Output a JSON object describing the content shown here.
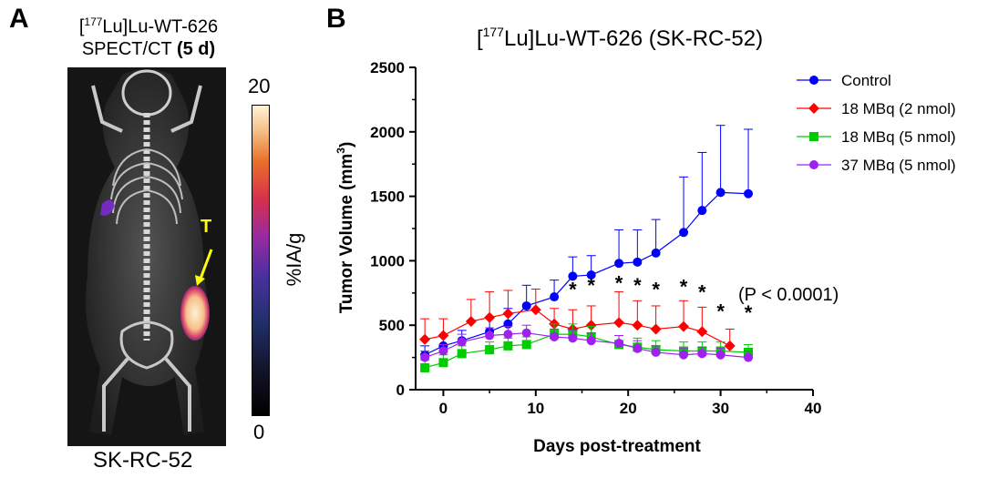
{
  "panel_a": {
    "letter": "A",
    "title_sup": "177",
    "title_line1_rest": "Lu]Lu-WT-626",
    "title_line2": "SPECT/CT",
    "title_line2_bold": "(5 d)",
    "tumor_label": "T",
    "colorbar_max": "20",
    "colorbar_min": "0",
    "colorbar_label": "%IA/g",
    "caption": "SK-RC-52",
    "colors": {
      "tumor_arrow": "#ffff00"
    }
  },
  "panel_b": {
    "letter": "B",
    "annotation": "(P < 0.0001)",
    "significance_marker": "*"
  },
  "chart_data": {
    "type": "line",
    "title": "[177Lu]Lu-WT-626 (SK-RC-52)",
    "title_parts": {
      "open": "[",
      "sup": "177",
      "rest": "Lu]Lu-WT-626 (SK-RC-52)"
    },
    "xlabel": "Days post-treatment",
    "ylabel": "Tumor Volume (mm3)",
    "ylabel_parts": {
      "main": "Tumor Volume (mm",
      "sup": "3",
      "close": ")"
    },
    "xlim": [
      -3,
      40
    ],
    "ylim": [
      0,
      2500
    ],
    "xticks": [
      0,
      10,
      20,
      30,
      40
    ],
    "yticks": [
      0,
      500,
      1000,
      1500,
      2000,
      2500
    ],
    "legend_position": "top-right",
    "series": [
      {
        "name": "Control",
        "color": "#0000ff",
        "marker": "circle",
        "x": [
          -2,
          0,
          2,
          5,
          7,
          9,
          12,
          14,
          16,
          19,
          21,
          23,
          26,
          28,
          30,
          33
        ],
        "y": [
          270,
          340,
          380,
          450,
          510,
          650,
          720,
          880,
          890,
          980,
          990,
          1060,
          1220,
          1390,
          1530,
          1520
        ],
        "err": [
          70,
          80,
          80,
          110,
          120,
          160,
          130,
          150,
          150,
          260,
          250,
          260,
          430,
          450,
          520,
          500
        ]
      },
      {
        "name": "18 MBq (2 nmol)",
        "color": "#ff0000",
        "marker": "diamond",
        "x": [
          -2,
          0,
          3,
          5,
          7,
          10,
          12,
          14,
          16,
          19,
          21,
          23,
          26,
          28,
          31
        ],
        "y": [
          390,
          420,
          530,
          560,
          590,
          620,
          510,
          470,
          500,
          520,
          500,
          470,
          490,
          450,
          340
        ],
        "err": [
          160,
          130,
          170,
          200,
          180,
          160,
          120,
          150,
          150,
          240,
          190,
          180,
          200,
          190,
          130
        ]
      },
      {
        "name": "18 MBq (5 nmol)",
        "color": "#00cc00",
        "marker": "square",
        "x": [
          -2,
          0,
          2,
          5,
          7,
          9,
          12,
          14,
          16,
          19,
          21,
          23,
          26,
          28,
          30,
          33
        ],
        "y": [
          170,
          210,
          280,
          310,
          340,
          350,
          430,
          430,
          410,
          350,
          330,
          310,
          300,
          300,
          300,
          290
        ],
        "err": [
          60,
          60,
          60,
          60,
          60,
          60,
          80,
          80,
          80,
          70,
          70,
          70,
          70,
          70,
          70,
          60
        ]
      },
      {
        "name": "37 MBq (5 nmol)",
        "color": "#a020f0",
        "marker": "circle",
        "x": [
          -2,
          0,
          2,
          5,
          7,
          9,
          12,
          14,
          16,
          19,
          21,
          23,
          26,
          28,
          30,
          33
        ],
        "y": [
          250,
          300,
          370,
          420,
          430,
          440,
          410,
          400,
          380,
          360,
          320,
          290,
          270,
          280,
          270,
          250
        ],
        "err": [
          50,
          50,
          60,
          60,
          60,
          60,
          60,
          60,
          60,
          60,
          60,
          50,
          50,
          50,
          50,
          50
        ]
      }
    ],
    "significance": [
      {
        "x": 14,
        "label": "*"
      },
      {
        "x": 16,
        "label": "*"
      },
      {
        "x": 19,
        "label": "*"
      },
      {
        "x": 21,
        "label": "*"
      },
      {
        "x": 23,
        "label": "*"
      },
      {
        "x": 26,
        "label": "*"
      },
      {
        "x": 28,
        "label": "*"
      },
      {
        "x": 30,
        "label": "*"
      },
      {
        "x": 33,
        "label": "*"
      }
    ]
  }
}
